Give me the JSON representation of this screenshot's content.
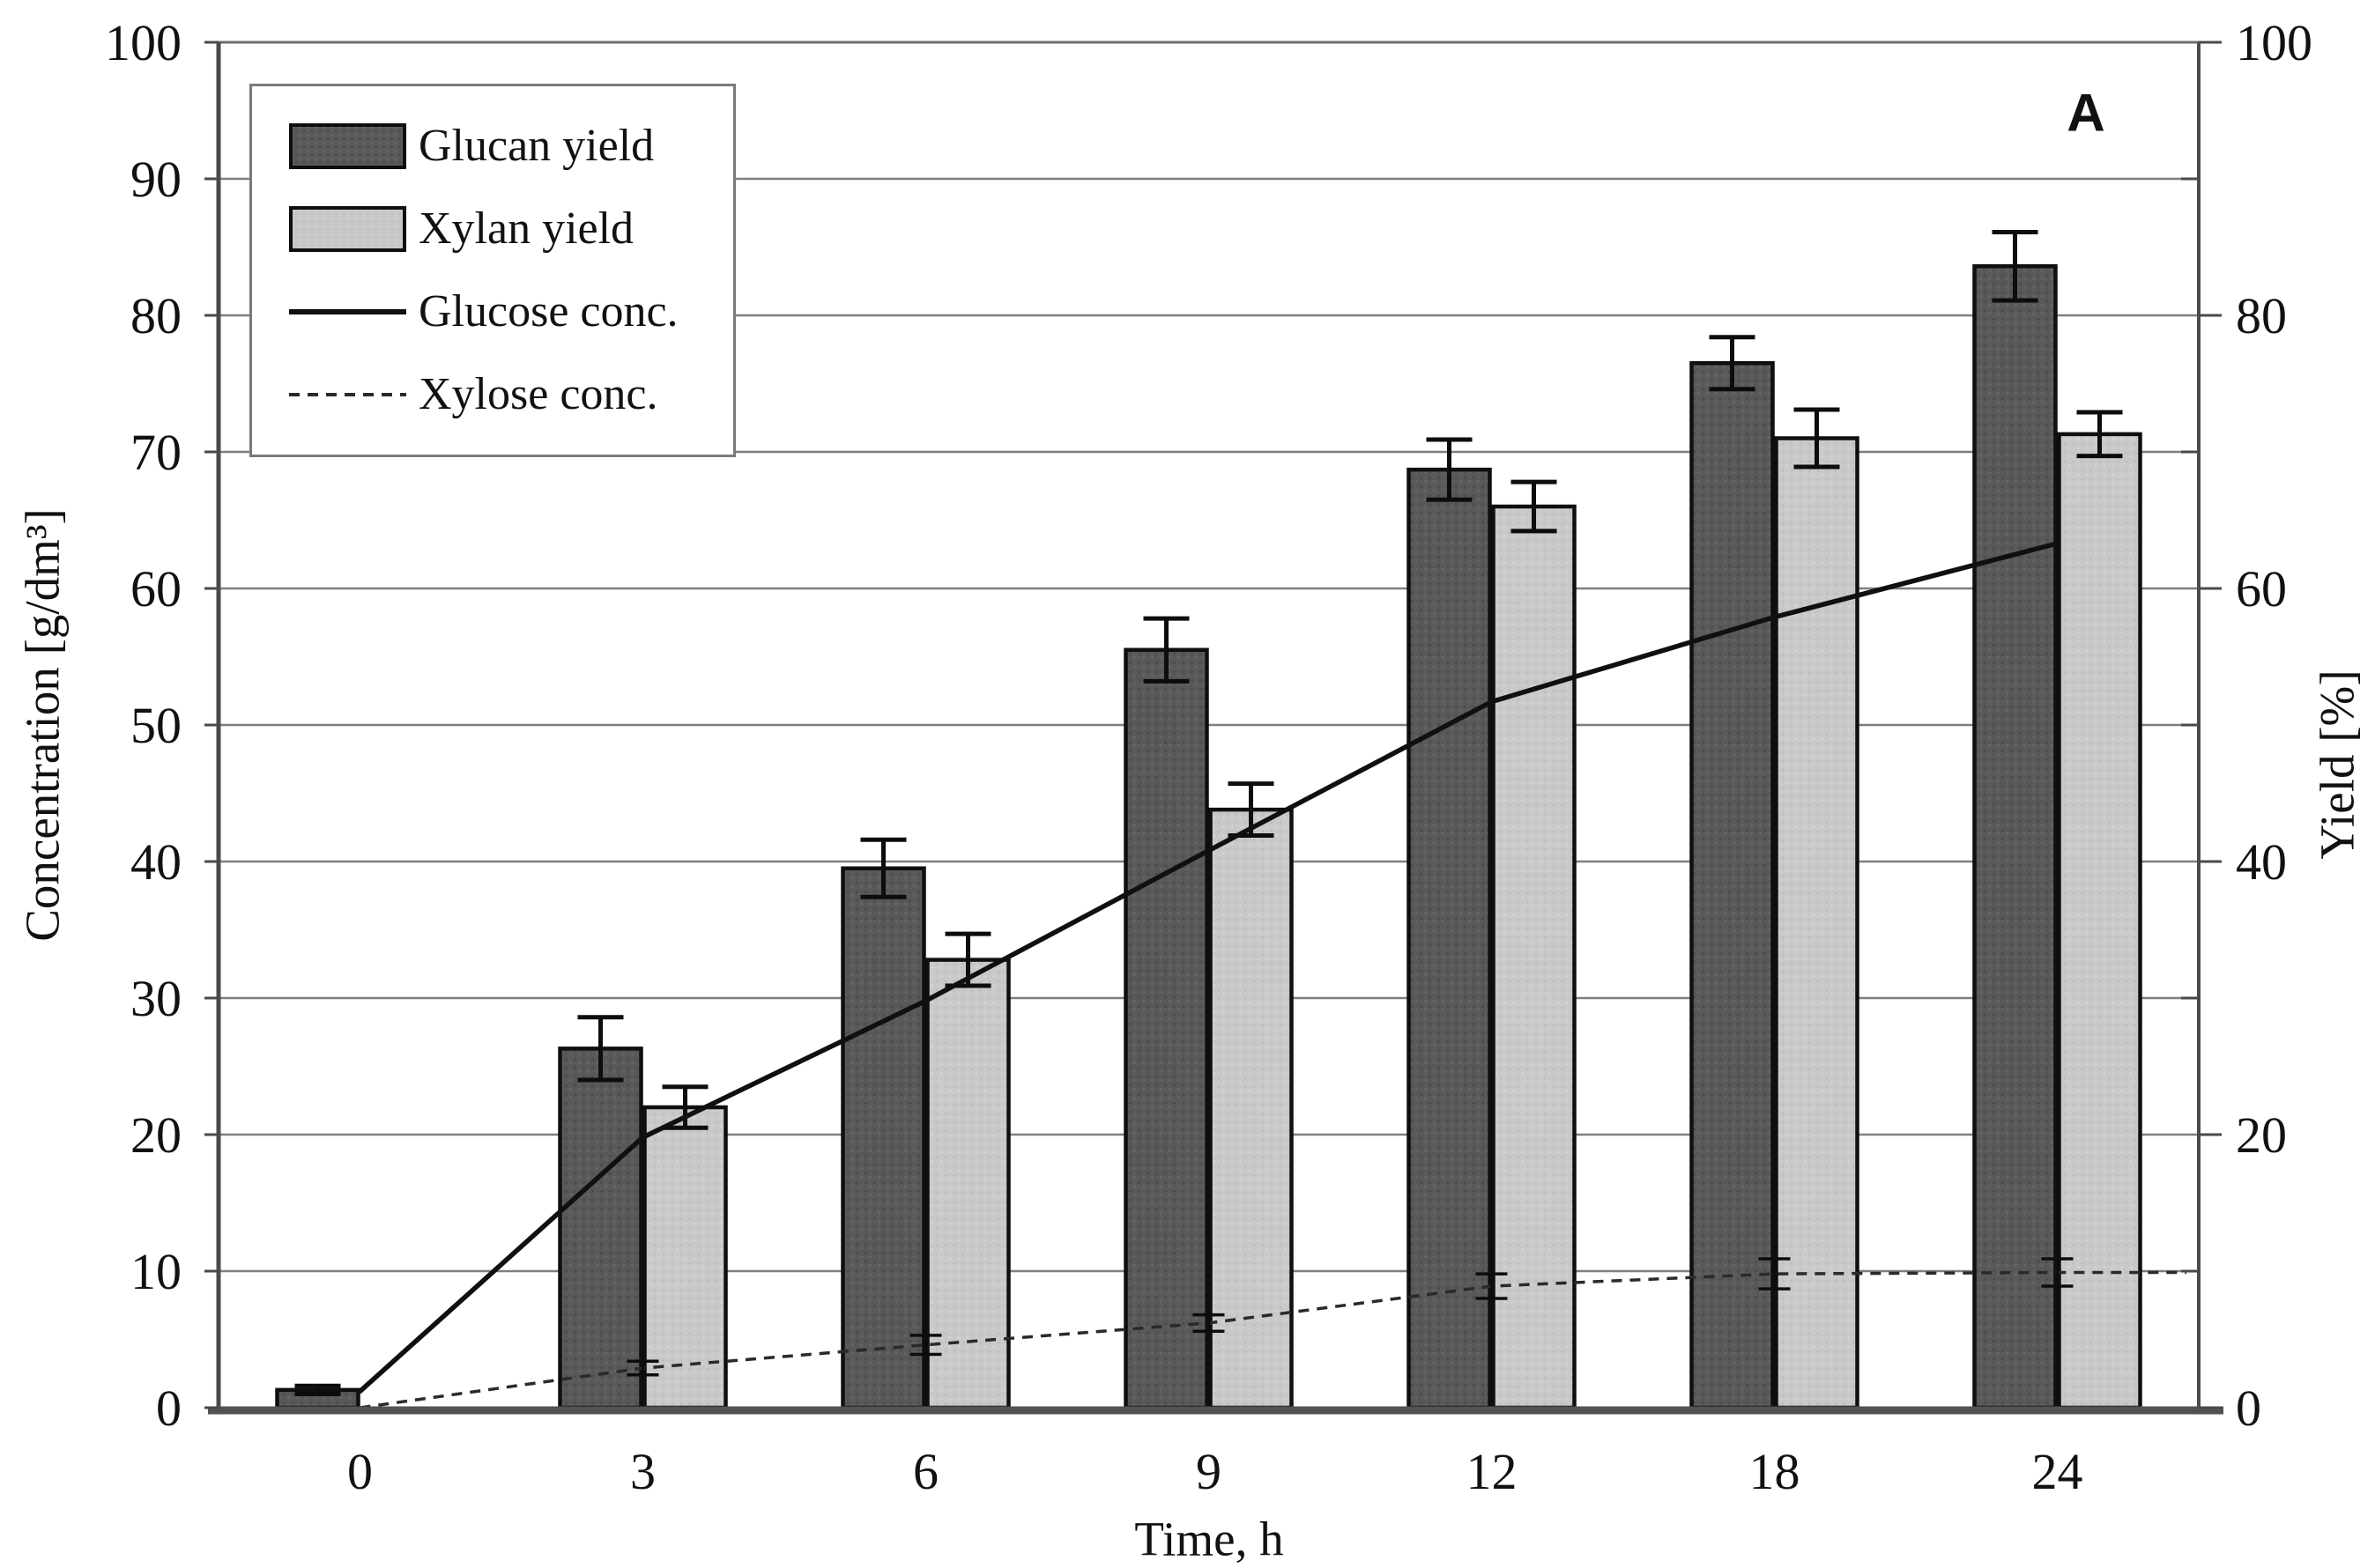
{
  "figure": {
    "panel_label": "A",
    "background": "#ffffff"
  },
  "axes": {
    "x": {
      "title": "Time, h"
    },
    "y_left": {
      "title": "Concentration [g/dm³]",
      "min": 0,
      "max": 100,
      "tick_step": 10,
      "label_step": 10
    },
    "y_right": {
      "title": "Yield [%]",
      "min": 0,
      "max": 100,
      "tick_step": 10,
      "label_step": 20
    }
  },
  "styles": {
    "dark_bar": "#595959",
    "light_bar": "#c9c9c9",
    "solid_line": "#101010",
    "dashed_line": "#2a2a2a",
    "grid": "#7f7f7f",
    "axis": "#4a4a4a",
    "error_bar": "#0d0d0d"
  },
  "chart_data": {
    "type": "bar+line",
    "title": "",
    "x_label": "Time, h",
    "ylabel_left": "Concentration [g/dm³]",
    "ylabel_right": "Yield [%]",
    "ylim": [
      0,
      100
    ],
    "grid": "horizontal gridlines every 10",
    "legend_position": "top-left",
    "x_categories": [
      0,
      3,
      6,
      9,
      12,
      18,
      24
    ],
    "series": [
      {
        "name": "Glucan yield",
        "type": "bar",
        "axis": "right",
        "color_key": "dark_bar",
        "values": [
          1.3,
          26.3,
          39.5,
          55.5,
          68.7,
          76.5,
          83.6
        ],
        "errors": [
          0.3,
          2.3,
          2.1,
          2.3,
          2.2,
          1.9,
          2.5
        ]
      },
      {
        "name": "Xylan yield",
        "type": "bar",
        "axis": "right",
        "color_key": "light_bar",
        "values": [
          null,
          22.0,
          32.8,
          43.8,
          66.0,
          71.0,
          71.3
        ],
        "errors": [
          null,
          1.5,
          1.9,
          1.9,
          1.8,
          2.1,
          1.6
        ]
      },
      {
        "name": "Glucose conc.",
        "type": "line",
        "line_style": "solid",
        "axis": "left",
        "values": [
          1.2,
          19.8,
          29.8,
          40.8,
          51.7,
          57.9,
          63.3
        ]
      },
      {
        "name": "Xylose conc.",
        "type": "line",
        "line_style": "dashed",
        "axis": "left",
        "values": [
          0,
          2.9,
          4.6,
          6.2,
          8.9,
          9.8,
          9.9
        ],
        "errors": [
          0,
          0.5,
          0.7,
          0.6,
          0.9,
          1.1,
          1.0
        ]
      }
    ]
  }
}
